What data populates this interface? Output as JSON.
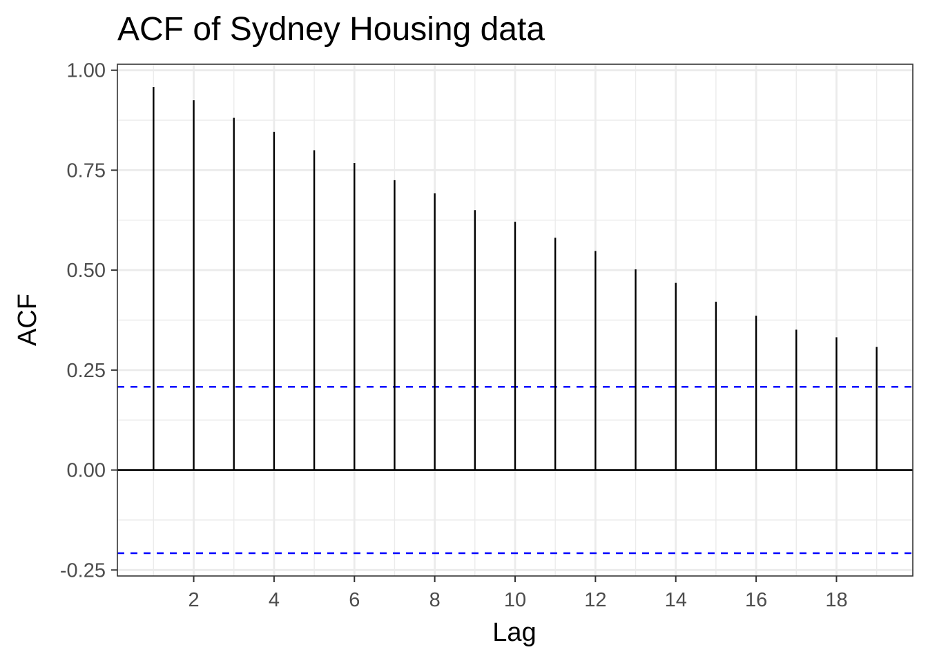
{
  "chart_data": {
    "type": "bar",
    "subtype": "acf-lollipop",
    "title": "ACF of Sydney Housing data",
    "xlabel": "Lag",
    "ylabel": "ACF",
    "x": [
      1,
      2,
      3,
      4,
      5,
      6,
      7,
      8,
      9,
      10,
      11,
      12,
      13,
      14,
      15,
      16,
      17,
      18,
      19
    ],
    "values": [
      0.958,
      0.925,
      0.881,
      0.846,
      0.8,
      0.768,
      0.725,
      0.692,
      0.65,
      0.621,
      0.581,
      0.548,
      0.502,
      0.468,
      0.421,
      0.386,
      0.351,
      0.332,
      0.308
    ],
    "xlim": [
      0.1,
      19.9
    ],
    "ylim": [
      -0.265,
      1.015
    ],
    "x_ticks": [
      2,
      4,
      6,
      8,
      10,
      12,
      14,
      16,
      18
    ],
    "x_tick_labels": [
      "2",
      "4",
      "6",
      "8",
      "10",
      "12",
      "14",
      "16",
      "18"
    ],
    "y_ticks": [
      -0.25,
      0.0,
      0.25,
      0.5,
      0.75,
      1.0
    ],
    "y_tick_labels": [
      "-0.25",
      "0.00",
      "0.25",
      "0.50",
      "0.75",
      "1.00"
    ],
    "confidence_bounds": [
      0.208,
      -0.208
    ],
    "zero_line": 0,
    "grid": true,
    "legend": "none",
    "colors": {
      "bars": "#000000",
      "bounds": "#0000ff",
      "grid": "#ebebeb",
      "panel_border": "#333333",
      "tick_label": "#4d4d4d"
    }
  }
}
